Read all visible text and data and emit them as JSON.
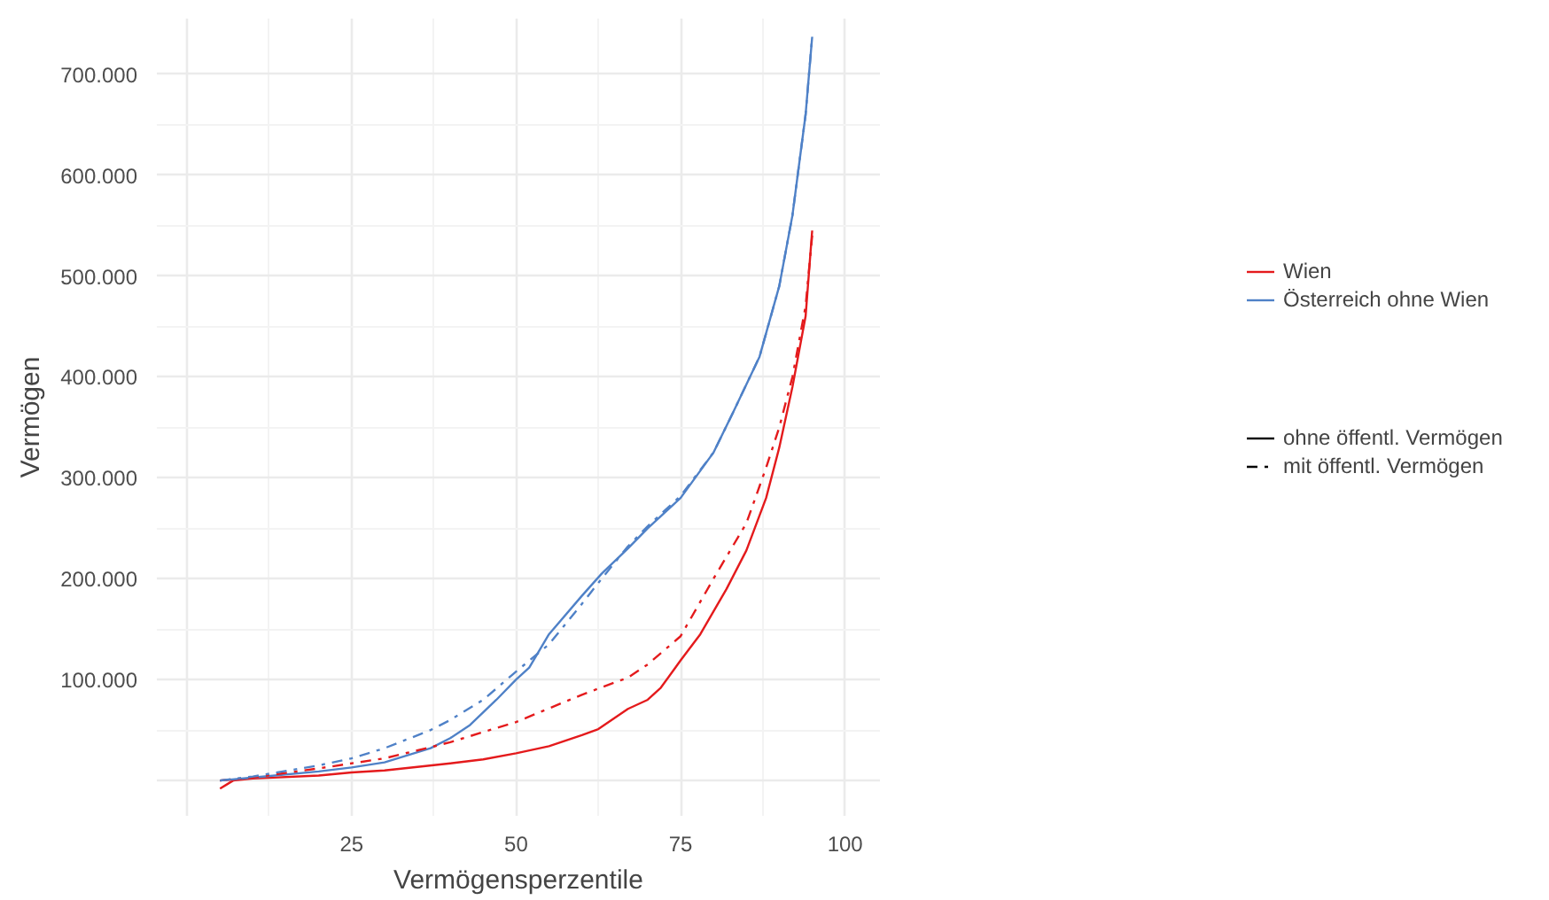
{
  "chart_data": {
    "type": "line",
    "xlabel": "Vermögensperzentile",
    "ylabel": "Vermögen",
    "xlim": [
      -4.6,
      105.3
    ],
    "ylim": [
      -35000,
      755000
    ],
    "xticks": [
      {
        "value": 0,
        "label": null
      },
      25,
      50,
      75,
      100
    ],
    "yticks": [
      {
        "value": 0,
        "label": null
      },
      {
        "value": 100000,
        "label": "100.000"
      },
      {
        "value": 200000,
        "label": "200.000"
      },
      {
        "value": 300000,
        "label": "300.000"
      },
      {
        "value": 400000,
        "label": "400.000"
      },
      {
        "value": 500000,
        "label": "500.000"
      },
      {
        "value": 600000,
        "label": "600.000"
      },
      {
        "value": 700000,
        "label": "700.000"
      }
    ],
    "grid": true,
    "legend": "right",
    "annotations": [
      "ohne öffentl. Vermögen",
      "mit öffentl. Vermögen"
    ],
    "series": [
      {
        "name": "Wien",
        "color": "#e41a1c",
        "line_style": "solid",
        "x": [
          5,
          7,
          10,
          20,
          25,
          30,
          40,
          45,
          50,
          55,
          60,
          62.5,
          67,
          70,
          72,
          75,
          78,
          82,
          85,
          88,
          90,
          92,
          94,
          95
        ],
        "values": [
          -8000,
          0,
          2000,
          5000,
          8000,
          10000,
          17000,
          21000,
          27000,
          34000,
          45000,
          51000,
          71000,
          80000,
          92000,
          119000,
          145000,
          190000,
          228000,
          280000,
          330000,
          390000,
          460000,
          545000
        ]
      },
      {
        "name": "Österreich ohne Wien",
        "color": "#4f81c7",
        "line_style": "solid",
        "x": [
          5,
          10,
          20,
          25,
          30,
          37,
          40,
          43,
          47,
          50,
          52,
          55,
          60,
          63,
          67,
          70,
          75,
          80,
          83,
          87,
          90,
          92,
          94,
          95
        ],
        "values": [
          0,
          3000,
          9000,
          13000,
          18000,
          32000,
          42000,
          55000,
          80000,
          100000,
          112000,
          145000,
          183000,
          205000,
          230000,
          250000,
          280000,
          325000,
          365000,
          420000,
          490000,
          560000,
          660000,
          737000
        ]
      },
      {
        "color": "#e41a1c",
        "line_style": "dashed",
        "x": [
          5,
          10,
          20,
          30,
          37,
          40,
          50,
          60,
          67,
          70,
          75,
          80,
          85,
          88,
          90,
          92,
          94,
          95
        ],
        "values": [
          0,
          3000,
          12000,
          22000,
          33000,
          38000,
          58000,
          85000,
          102000,
          115000,
          143000,
          200000,
          255000,
          310000,
          350000,
          400000,
          470000,
          540000
        ]
      },
      {
        "color": "#4f81c7",
        "line_style": "dashed",
        "x": [
          5,
          10,
          20,
          25,
          30,
          37,
          40,
          45,
          50,
          55,
          60,
          63,
          67,
          70,
          75,
          80,
          83,
          87,
          90,
          92,
          94,
          95
        ],
        "values": [
          0,
          4000,
          15000,
          22000,
          32000,
          50000,
          60000,
          80000,
          108000,
          135000,
          175000,
          200000,
          232000,
          252000,
          282000,
          325000,
          365000,
          420000,
          490000,
          560000,
          660000,
          737000
        ]
      }
    ]
  }
}
